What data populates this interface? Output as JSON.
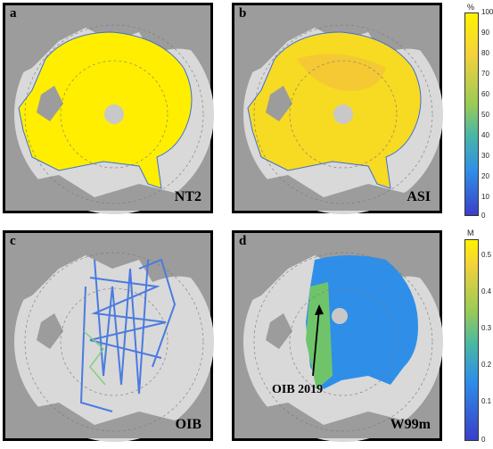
{
  "panels": [
    {
      "id": "a",
      "label": "a",
      "name": "NT2"
    },
    {
      "id": "b",
      "label": "b",
      "name": "ASI"
    },
    {
      "id": "c",
      "label": "c",
      "name": "OIB"
    },
    {
      "id": "d",
      "label": "d",
      "name": "W99m"
    }
  ],
  "annotation": "OIB 2019",
  "colorbar_top": {
    "unit": "%",
    "ticks": [
      "100",
      "90",
      "80",
      "70",
      "60",
      "50",
      "40",
      "30",
      "20",
      "10",
      "0"
    ]
  },
  "colorbar_bottom": {
    "unit": "M",
    "ticks": [
      "0.5",
      "0.4",
      "0.3",
      "0.2",
      "0.1",
      "0"
    ]
  },
  "colors": {
    "land": "#9c9c9c",
    "ocean": "#d9d9d9",
    "ice_high": "#ffee00",
    "ice_mid": "#f2c43a",
    "track": "#4a7be0",
    "w99m": "#2f8fe8",
    "w99m_green": "#6fc46a"
  }
}
